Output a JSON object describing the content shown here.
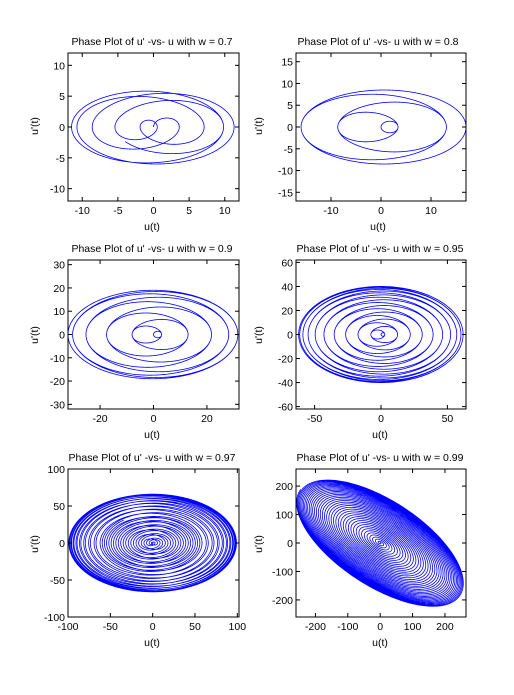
{
  "chart_data": [
    {
      "type": "line",
      "title": "Phase Plot of u' -vs- u  with w = 0.7",
      "xlabel": "u(t)",
      "ylabel": "u'(t)",
      "xlim": [
        -12,
        12
      ],
      "ylim": [
        -12,
        12
      ],
      "xticks": [
        -10,
        -5,
        0,
        5,
        10
      ],
      "yticks": [
        -10,
        -5,
        0,
        5,
        10
      ],
      "grid": false,
      "series": [
        {
          "color": "#0000ff",
          "w": 0.7,
          "u_max": 11.5,
          "du_max": 6.0,
          "tilt": 0.0
        }
      ]
    },
    {
      "type": "line",
      "title": "Phase Plot of u' -vs- u  with w = 0.8",
      "xlabel": "u(t)",
      "ylabel": "u'(t)",
      "xlim": [
        -17,
        17
      ],
      "ylim": [
        -17,
        17
      ],
      "xticks": [
        -10,
        0,
        10
      ],
      "yticks": [
        -15,
        -10,
        -5,
        0,
        5,
        10,
        15
      ],
      "grid": false,
      "series": [
        {
          "color": "#0000ff",
          "w": 0.8,
          "u_max": 17.0,
          "du_max": 8.5,
          "tilt": 0.0
        }
      ]
    },
    {
      "type": "line",
      "title": "Phase Plot of u' -vs- u  with w = 0.9",
      "xlabel": "u(t)",
      "ylabel": "u'(t)",
      "xlim": [
        -32,
        32
      ],
      "ylim": [
        -32,
        32
      ],
      "xticks": [
        -20,
        0,
        20
      ],
      "yticks": [
        -30,
        -20,
        -10,
        0,
        10,
        20,
        30
      ],
      "grid": false,
      "series": [
        {
          "color": "#0000ff",
          "w": 0.9,
          "u_max": 32.0,
          "du_max": 19.0,
          "tilt": 0.0
        }
      ]
    },
    {
      "type": "line",
      "title": "Phase Plot of u' -vs- u  with w = 0.95",
      "xlabel": "u(t)",
      "ylabel": "u'(t)",
      "xlim": [
        -64,
        64
      ],
      "ylim": [
        -62,
        62
      ],
      "xticks": [
        -50,
        0,
        50
      ],
      "yticks": [
        -60,
        -40,
        -20,
        0,
        20,
        40,
        60
      ],
      "grid": false,
      "series": [
        {
          "color": "#0000ff",
          "w": 0.95,
          "u_max": 62.0,
          "du_max": 40.0,
          "tilt": 0.0
        }
      ]
    },
    {
      "type": "line",
      "title": "Phase Plot of u' -vs- u  with w = 0.97",
      "xlabel": "u(t)",
      "ylabel": "u'(t)",
      "xlim": [
        -100,
        102
      ],
      "ylim": [
        -100,
        100
      ],
      "xticks": [
        -100,
        -50,
        0,
        50,
        100
      ],
      "yticks": [
        -100,
        -50,
        0,
        50,
        100
      ],
      "grid": false,
      "series": [
        {
          "color": "#0000ff",
          "w": 0.97,
          "u_max": 99.0,
          "du_max": 66.0,
          "tilt": 0.0
        }
      ]
    },
    {
      "type": "line",
      "title": "Phase Plot of u' -vs- u  with w = 0.99",
      "xlabel": "u(t)",
      "ylabel": "u'(t)",
      "xlim": [
        -260,
        265
      ],
      "ylim": [
        -260,
        260
      ],
      "xticks": [
        -200,
        -100,
        0,
        100,
        200
      ],
      "yticks": [
        -200,
        -100,
        0,
        100,
        200
      ],
      "grid": false,
      "series": [
        {
          "color": "#0000ff",
          "w": 0.99,
          "u_max": 258.0,
          "du_max": 172.0,
          "tilt": -0.55
        }
      ]
    }
  ]
}
